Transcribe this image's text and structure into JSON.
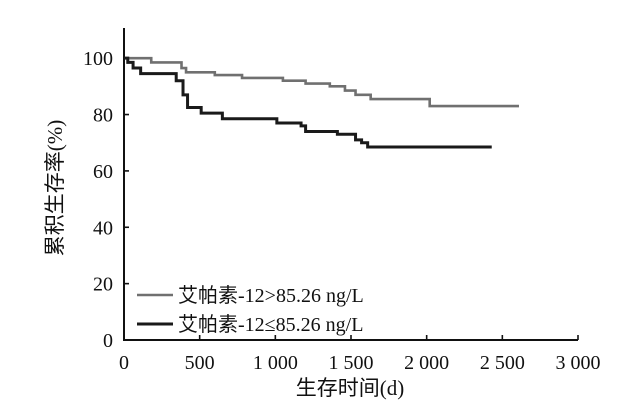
{
  "chart_data": {
    "type": "line",
    "drawstyle": "steps-post",
    "xlabel": "生存时间(d)",
    "ylabel": "累积生存率(%)",
    "xlim": [
      0,
      3000
    ],
    "ylim": [
      0,
      110
    ],
    "xticks": [
      0,
      500,
      1000,
      1500,
      2000,
      2500,
      3000
    ],
    "xtick_labels": [
      "0",
      "500",
      "1 000",
      "1 500",
      "2 000",
      "2 500",
      "3 000"
    ],
    "yticks": [
      0,
      20,
      40,
      60,
      80,
      100
    ],
    "ytick_labels": [
      "0",
      "20",
      "40",
      "60",
      "80",
      "100"
    ],
    "grid": false,
    "legend": "bottom-left",
    "series": [
      {
        "name": "艾帕素-12>85.26 ng/L",
        "color": "#707070",
        "x": [
          0,
          180,
          380,
          410,
          600,
          780,
          1050,
          1200,
          1360,
          1460,
          1530,
          1630,
          2020,
          2610
        ],
        "y": [
          100,
          98.5,
          96.5,
          95,
          94,
          93,
          92,
          91,
          90,
          88.5,
          87,
          85.5,
          83,
          83
        ]
      },
      {
        "name": "艾帕素-12≤85.26 ng/L",
        "color": "#1a1a1a",
        "x": [
          0,
          25,
          60,
          110,
          345,
          390,
          420,
          510,
          650,
          1010,
          1170,
          1200,
          1410,
          1530,
          1570,
          1610,
          2430
        ],
        "y": [
          100,
          98.5,
          96.5,
          94.5,
          92,
          87,
          82.5,
          80.5,
          78.5,
          77,
          76,
          74,
          73,
          71,
          70,
          68.5,
          68.5
        ]
      }
    ]
  }
}
